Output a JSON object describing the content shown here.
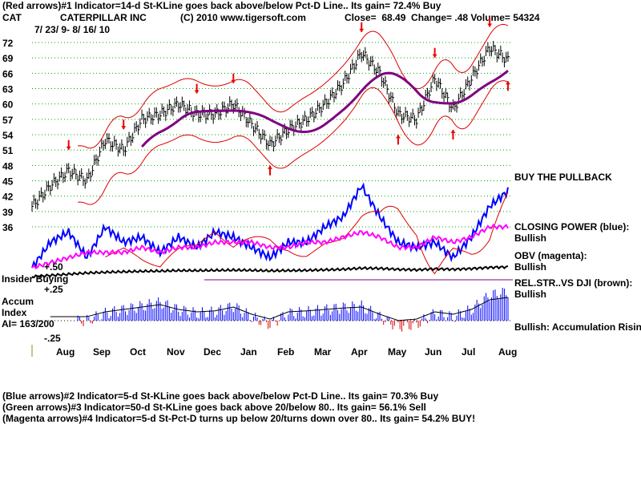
{
  "header": {
    "line1": "(Red arrows)#1 Indicator=14-d St-KLine goes back above/below Pct-D Line.. Its gain= 72.4% Buy",
    "ticker": "CAT",
    "company": "CATERPILLAR INC",
    "copyright": "(C) 2010 www.tigersoft.com",
    "quote": "Close=  68.49  Change= .48 Volume= 54324",
    "date_range": "7/ 23/ 9- 8/ 16/ 10"
  },
  "labels": {
    "buy_pullback": "BUY THE PULLBACK",
    "closing_power": "CLOSING POWER (blue):",
    "closing_power_status": "Bullish",
    "obv": "OBV (magenta):",
    "obv_status": "Bullish",
    "relstr": "REL.STR..VS DJI (brown):",
    "relstr_status": "Bullish",
    "accum_status": "Bullish: Accumulation Rising",
    "insider": "Insider Buying",
    "plus50": "+.50",
    "plus25": "+.25",
    "minus25": "-.25",
    "accum1": "Accum",
    "accum2": "Index",
    "ai": "AI= 163/200"
  },
  "footer": [
    "(Blue arrows)#2 Indicator=5-d St-KLine goes back above/below Pct-D Line.. Its gain= 70.3% Buy",
    "(Green arrows)#3 Indicator=50-d St-KLine goes back above 20/below 80.. Its gain= 56.1% Sell",
    "(Magenta arrows)#4 Indicator=5-d St-Pct-D turns up below 20/turns down over 80.. Its gain= 54.2% BUY!"
  ],
  "chart_data": {
    "type": "line",
    "title": "CAT CATERPILLAR INC",
    "yticks": [
      72,
      69,
      66,
      63,
      60,
      57,
      54,
      51,
      48,
      45,
      42,
      39,
      36
    ],
    "ylim": [
      36,
      72
    ],
    "xticks": [
      "Aug",
      "Sep",
      "Oct",
      "Nov",
      "Dec",
      "Jan",
      "Feb",
      "Mar",
      "Apr",
      "May",
      "Jun",
      "Jul",
      "Aug"
    ],
    "x_semimonthly_index_range": [
      0,
      26
    ],
    "price": [
      40,
      44,
      47,
      45,
      53,
      51,
      57,
      58,
      60,
      58,
      58,
      60,
      56,
      52,
      55,
      57,
      60,
      64,
      70,
      66,
      58,
      57,
      65,
      59,
      65,
      71,
      68.5
    ],
    "closing_power": [
      28,
      33,
      35,
      30,
      36,
      33,
      34,
      31,
      34,
      32,
      35,
      34,
      32,
      30,
      33,
      33,
      36,
      38,
      44,
      38,
      33,
      32,
      33,
      30,
      34,
      40,
      43
    ],
    "obv": [
      28,
      29,
      30,
      31,
      31,
      31,
      32,
      31,
      32,
      32,
      33,
      33,
      33,
      32,
      32,
      33,
      33,
      34,
      35,
      34,
      32,
      32,
      34,
      33,
      34,
      36,
      36
    ],
    "rel_strength_level": [
      0.1,
      0.15,
      0.2,
      0.25,
      0.28,
      0.3,
      0.32,
      0.33,
      0.35,
      0.35,
      0.36,
      0.37,
      0.36,
      0.34,
      0.35,
      0.36,
      0.38,
      0.4,
      0.45,
      0.44,
      0.4,
      0.38,
      0.42,
      0.4,
      0.43,
      0.48,
      0.5
    ],
    "accum_index": [
      0,
      0,
      0,
      0,
      0.1,
      0.15,
      0.2,
      0.25,
      0.15,
      0.1,
      0.12,
      0.2,
      0.05,
      -0.05,
      0.1,
      0.12,
      0.15,
      0.18,
      0.2,
      0.05,
      -0.08,
      -0.05,
      0.1,
      0.05,
      0.15,
      0.35,
      0.4
    ],
    "red_arrows": [
      {
        "i": 2,
        "dir": "down"
      },
      {
        "i": 5,
        "dir": "down"
      },
      {
        "i": 9,
        "dir": "down"
      },
      {
        "i": 11,
        "dir": "down"
      },
      {
        "i": 13,
        "dir": "up"
      },
      {
        "i": 18,
        "dir": "down"
      },
      {
        "i": 20,
        "dir": "up"
      },
      {
        "i": 22,
        "dir": "down"
      },
      {
        "i": 23,
        "dir": "up"
      },
      {
        "i": 25,
        "dir": "down"
      },
      {
        "i": 26,
        "dir": "up"
      }
    ]
  }
}
